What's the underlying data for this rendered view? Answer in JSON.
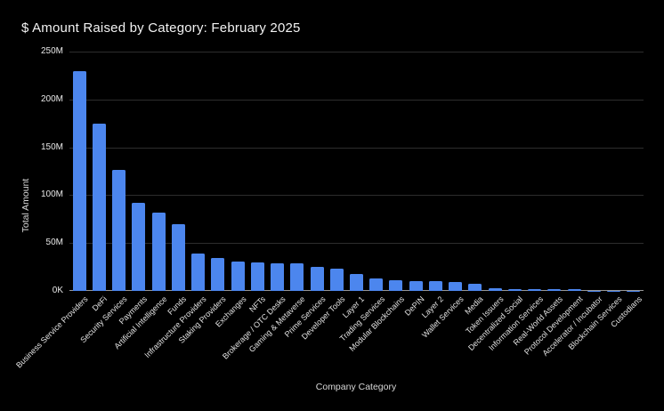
{
  "chart_data": {
    "type": "bar",
    "title": "$ Amount Raised by Category: February 2025",
    "xlabel": "Company Category",
    "ylabel": "Total Amount",
    "ylim_millions": [
      0,
      250
    ],
    "grid": true,
    "legend": "none",
    "background_color": "#000000",
    "bar_color": "#4c86ee",
    "gridline_color": "#2d2d2d",
    "axis_line_color": "#979797",
    "text_color": "#f2f2f2",
    "y_ticks": [
      {
        "label": "250M",
        "value_millions": 250
      },
      {
        "label": "200M",
        "value_millions": 200
      },
      {
        "label": "150M",
        "value_millions": 150
      },
      {
        "label": "100M",
        "value_millions": 100
      },
      {
        "label": "50M",
        "value_millions": 50
      },
      {
        "label": "0K",
        "value_millions": 0
      }
    ],
    "categories": [
      "Business Service Providers",
      "DeFi",
      "Security Services",
      "Payments",
      "Artificial Intelligence",
      "Funds",
      "Infrastructure Providers",
      "Staking Providers",
      "Exchanges",
      "NFTs",
      "Brokerage / OTC Desks",
      "Gaming & Metaverse",
      "Prime Services",
      "Developer Tools",
      "Layer 1",
      "Trading Services",
      "Modular Blockchains",
      "DePIN",
      "Layer 2",
      "Wallet Services",
      "Media",
      "Token Issuers",
      "Decentralized Social",
      "Information Services",
      "Real-World Assets",
      "Protocol Development",
      "Accelerator / Incubator",
      "Blockchain Services",
      "Custodians"
    ],
    "values_usd_millions": [
      230,
      175,
      126,
      92,
      82,
      70,
      39,
      34,
      31,
      30,
      29,
      28.5,
      25,
      23,
      17.5,
      13,
      11.5,
      10.5,
      10.5,
      9.5,
      7.5,
      3,
      2.2,
      2.2,
      2.2,
      1.5,
      0.4,
      0.25,
      0.15
    ]
  }
}
